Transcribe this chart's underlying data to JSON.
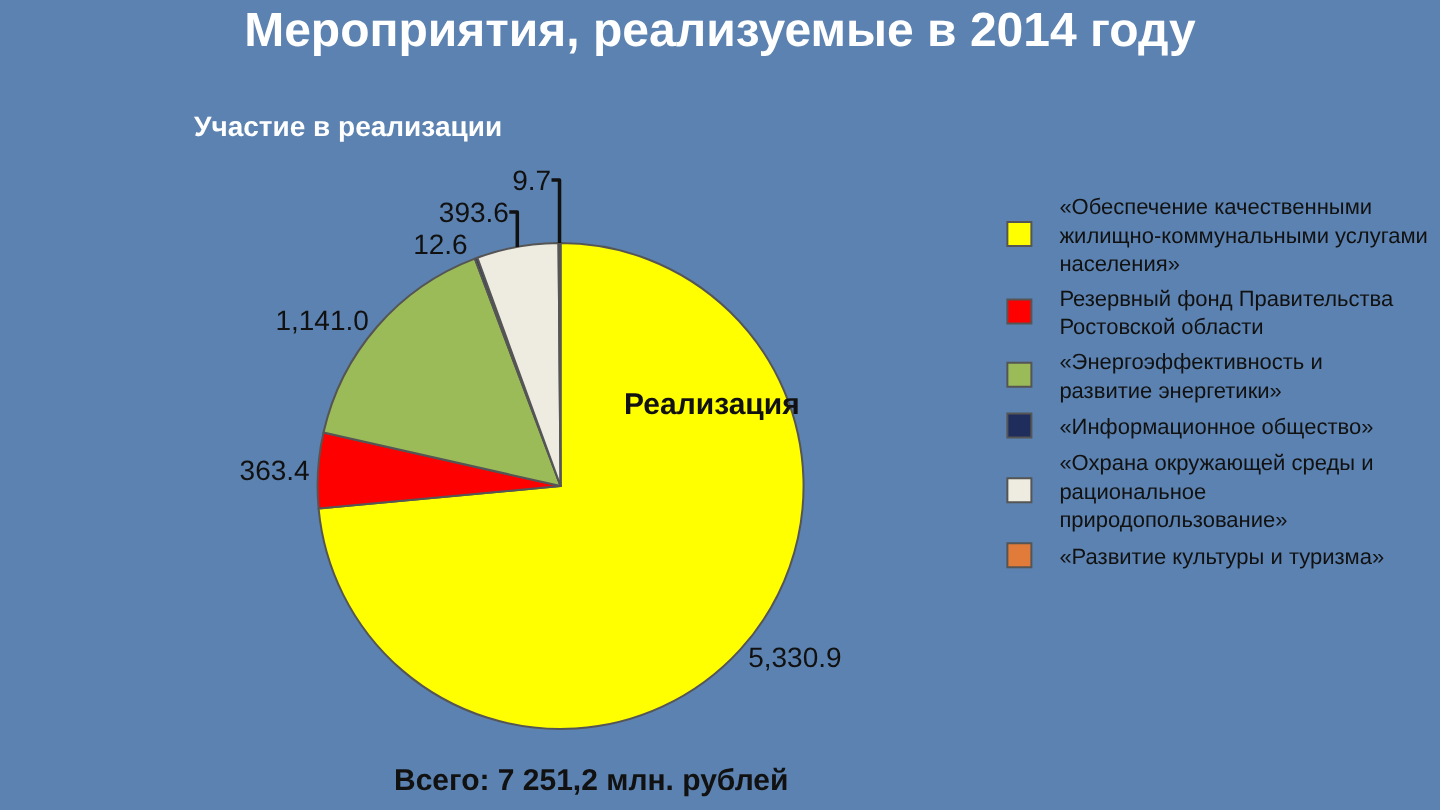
{
  "chart_data": {
    "type": "pie",
    "title": "Мероприятия, реализуемые в 2014 году",
    "subtitle": "Участие в реализации",
    "categories": [
      "«Обеспечение качественными жилищно-коммунальными услугами населения»",
      "Резервный фонд Правительства Ростовской области",
      "«Энергоэффективность и развитие энергетики»",
      "«Информационное общество»",
      "«Охрана окружающей среды и рациональное природопользование»",
      "«Развитие культуры и туризма»"
    ],
    "values": [
      5330.9,
      363.4,
      1141.0,
      12.6,
      393.6,
      9.7
    ],
    "value_labels": [
      "5,330.9",
      "363.4",
      "1,141.0",
      "12.6",
      "393.6",
      "9.7"
    ],
    "colors": [
      "#ffff00",
      "#ff0000",
      "#9bbb59",
      "#1f2d5c",
      "#eeece1",
      "#e07b39"
    ],
    "annotations": [
      "Реализация",
      "Всего: 7 251,2 млн. рублей"
    ],
    "legend": "right"
  }
}
